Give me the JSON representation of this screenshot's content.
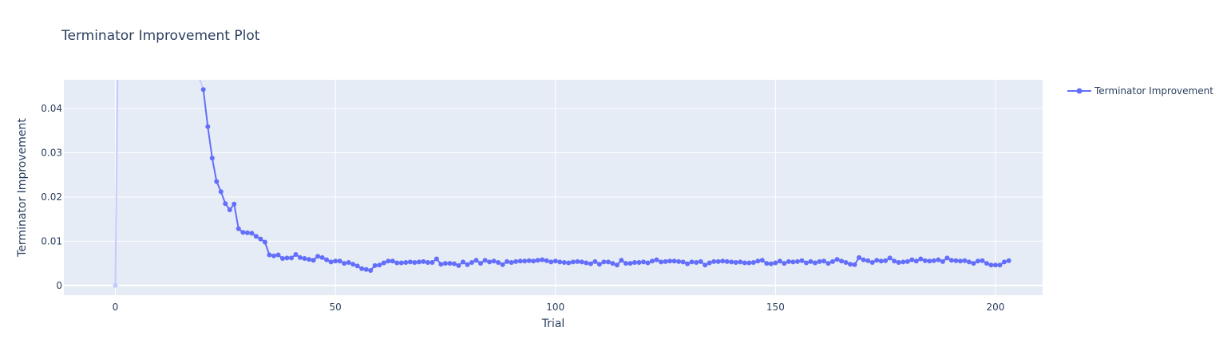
{
  "chart_data": {
    "type": "line",
    "title": "Terminator Improvement Plot",
    "xlabel": "Trial",
    "ylabel": "Terminator Improvement",
    "xlim": [
      -11.7,
      210.7
    ],
    "ylim": [
      -0.0022,
      0.0465
    ],
    "x_ticks": [
      "0",
      "50",
      "100",
      "150",
      "200"
    ],
    "y_ticks": [
      "0",
      "0.01",
      "0.02",
      "0.03",
      "0.04"
    ],
    "grid": true,
    "legend": "top-right",
    "colors": {
      "series": "#636efa",
      "series_faded": "#c5c9fd",
      "plot_bg": "#e5ecf6",
      "grid": "#ffffff"
    },
    "series": [
      {
        "name": "Terminator Improvement",
        "x_start": 20,
        "values": [
          0.0443,
          0.0359,
          0.0288,
          0.0235,
          0.0212,
          0.0185,
          0.0171,
          0.0184,
          0.0128,
          0.012,
          0.0119,
          0.0118,
          0.0111,
          0.0105,
          0.0098,
          0.0069,
          0.0067,
          0.0069,
          0.0061,
          0.0062,
          0.0062,
          0.007,
          0.0063,
          0.0061,
          0.0059,
          0.0057,
          0.0066,
          0.0063,
          0.0058,
          0.0053,
          0.0055,
          0.0055,
          0.005,
          0.0052,
          0.0048,
          0.0044,
          0.0038,
          0.0036,
          0.0034,
          0.0045,
          0.0046,
          0.0051,
          0.0055,
          0.0055,
          0.0051,
          0.0051,
          0.0052,
          0.0053,
          0.0052,
          0.0053,
          0.0054,
          0.0052,
          0.0052,
          0.006,
          0.0048,
          0.005,
          0.005,
          0.0049,
          0.0045,
          0.0053,
          0.0047,
          0.0052,
          0.0057,
          0.005,
          0.0057,
          0.0053,
          0.0055,
          0.0052,
          0.0047,
          0.0054,
          0.0052,
          0.0054,
          0.0055,
          0.0055,
          0.0056,
          0.0055,
          0.0057,
          0.0058,
          0.0056,
          0.0053,
          0.0055,
          0.0053,
          0.0052,
          0.0051,
          0.0053,
          0.0054,
          0.0053,
          0.0051,
          0.0049,
          0.0054,
          0.0048,
          0.0053,
          0.0053,
          0.005,
          0.0046,
          0.0057,
          0.005,
          0.005,
          0.0052,
          0.0052,
          0.0053,
          0.0051,
          0.0055,
          0.0058,
          0.0053,
          0.0054,
          0.0055,
          0.0055,
          0.0054,
          0.0053,
          0.0049,
          0.0053,
          0.0052,
          0.0054,
          0.0046,
          0.0051,
          0.0054,
          0.0054,
          0.0055,
          0.0054,
          0.0053,
          0.0052,
          0.0053,
          0.0051,
          0.0051,
          0.0052,
          0.0055,
          0.0057,
          0.005,
          0.0049,
          0.0051,
          0.0055,
          0.005,
          0.0054,
          0.0053,
          0.0054,
          0.0056,
          0.0051,
          0.0054,
          0.0051,
          0.0054,
          0.0055,
          0.005,
          0.0054,
          0.0059,
          0.0055,
          0.0052,
          0.0048,
          0.0047,
          0.0063,
          0.0058,
          0.0056,
          0.0052,
          0.0057,
          0.0055,
          0.0056,
          0.0062,
          0.0055,
          0.0052,
          0.0053,
          0.0054,
          0.0058,
          0.0055,
          0.006,
          0.0056,
          0.0055,
          0.0056,
          0.0058,
          0.0054,
          0.0062,
          0.0057,
          0.0056,
          0.0055,
          0.0056,
          0.0053,
          0.005,
          0.0055,
          0.0056,
          0.005,
          0.0046,
          0.0046,
          0.0046,
          0.0053,
          0.0056
        ]
      }
    ],
    "faded_segment": {
      "x": [
        0,
        0.5
      ],
      "y": [
        0,
        0.0465
      ]
    }
  }
}
